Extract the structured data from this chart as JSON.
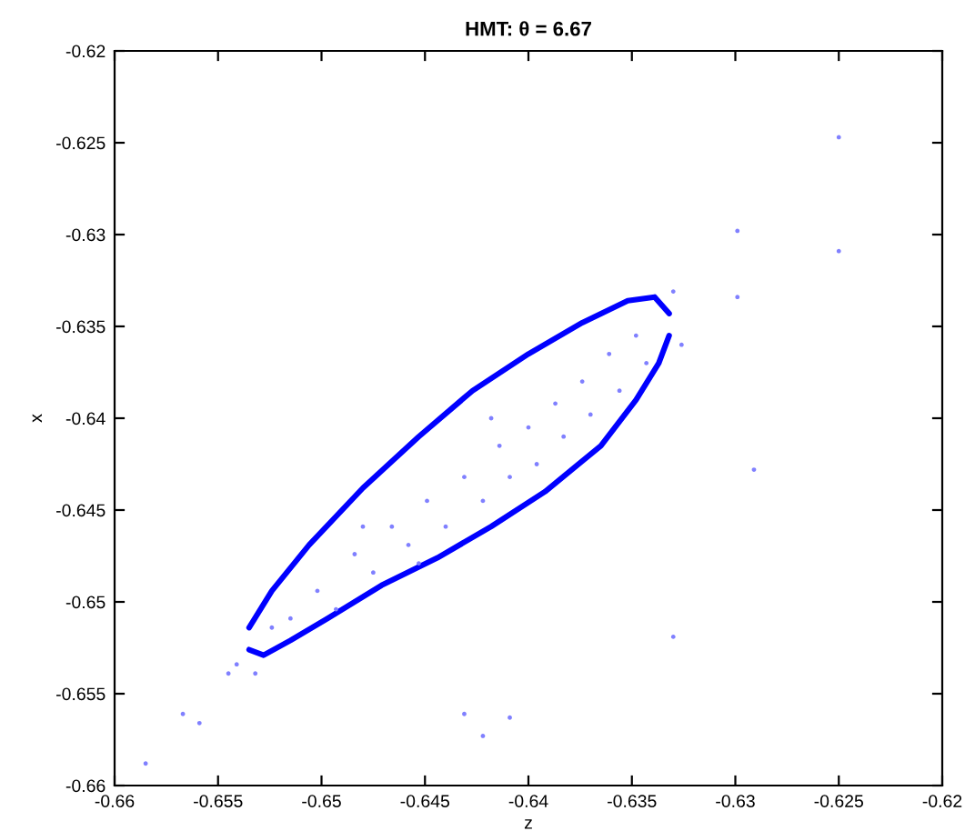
{
  "chart_data": {
    "type": "scatter",
    "title": "HMT: θ = 6.67",
    "xlabel": "z",
    "ylabel": "x",
    "xlim": [
      -0.66,
      -0.62
    ],
    "ylim": [
      -0.66,
      -0.62
    ],
    "xticks": [
      -0.66,
      -0.655,
      -0.65,
      -0.645,
      -0.64,
      -0.635,
      -0.63,
      -0.625,
      -0.62
    ],
    "yticks": [
      -0.66,
      -0.655,
      -0.65,
      -0.645,
      -0.64,
      -0.635,
      -0.63,
      -0.625,
      -0.62
    ],
    "grid": false,
    "legend": false,
    "marker": "circle",
    "series": [
      {
        "color": "#8080ff",
        "x": [
          -0.6515,
          -0.6502,
          -0.6493,
          -0.6484,
          -0.6475,
          -0.6466,
          -0.6458,
          -0.6449,
          -0.644,
          -0.6431,
          -0.6422,
          -0.6414,
          -0.6409,
          -0.64,
          -0.6396,
          -0.6387,
          -0.6383,
          -0.6374,
          -0.637,
          -0.6361,
          -0.6356,
          -0.6348,
          -0.6343,
          -0.6524,
          -0.6541,
          -0.6545,
          -0.6532,
          -0.633,
          -0.6326,
          -0.6418,
          -0.648,
          -0.6453,
          -0.625,
          -0.625,
          -0.6299,
          -0.6299,
          -0.6291,
          -0.6585,
          -0.6567,
          -0.6559,
          -0.6422,
          -0.6431,
          -0.6409,
          -0.633
        ],
        "values": [
          -0.6509,
          -0.6494,
          -0.6504,
          -0.6474,
          -0.6484,
          -0.6459,
          -0.6469,
          -0.6445,
          -0.6459,
          -0.6432,
          -0.6445,
          -0.6415,
          -0.6432,
          -0.6405,
          -0.6425,
          -0.6392,
          -0.641,
          -0.638,
          -0.6398,
          -0.6365,
          -0.6385,
          -0.6355,
          -0.637,
          -0.6514,
          -0.6534,
          -0.6539,
          -0.6539,
          -0.6331,
          -0.636,
          -0.64,
          -0.6459,
          -0.6479,
          -0.6247,
          -0.6309,
          -0.6298,
          -0.6334,
          -0.6428,
          -0.6588,
          -0.6561,
          -0.6566,
          -0.6573,
          -0.6561,
          -0.6563,
          -0.6519
        ]
      },
      {
        "type": "line",
        "marker": "none",
        "color": "#0000ff",
        "x": [
          -0.6535,
          -0.6524,
          -0.6506,
          -0.648,
          -0.6453,
          -0.6427,
          -0.64,
          -0.6374,
          -0.6352,
          -0.6339,
          -0.6332
        ],
        "values": [
          -0.6514,
          -0.6494,
          -0.6469,
          -0.6438,
          -0.641,
          -0.6385,
          -0.6365,
          -0.6348,
          -0.6336,
          -0.6334,
          -0.6343
        ]
      },
      {
        "type": "line",
        "marker": "none",
        "color": "#0000ff",
        "x": [
          -0.6535,
          -0.6528,
          -0.6515,
          -0.6497,
          -0.6471,
          -0.6444,
          -0.6418,
          -0.6392,
          -0.6365,
          -0.6348,
          -0.6337,
          -0.6332
        ],
        "values": [
          -0.6526,
          -0.6529,
          -0.6521,
          -0.6509,
          -0.6491,
          -0.6476,
          -0.6459,
          -0.644,
          -0.6415,
          -0.639,
          -0.637,
          -0.6355
        ]
      }
    ]
  }
}
